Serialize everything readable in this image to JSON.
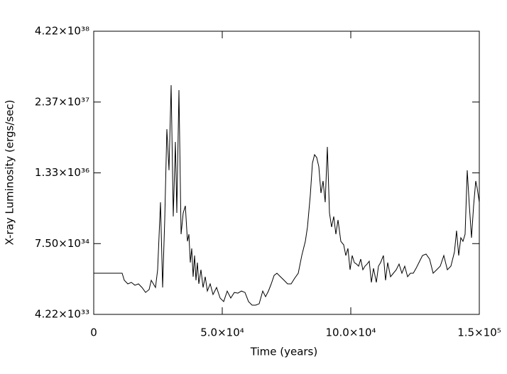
{
  "chart_data": {
    "type": "line",
    "xlabel": "Time (years)",
    "ylabel": "X-ray Luminosity (ergs/sec)",
    "color": "#000000",
    "ylog": true,
    "xlim": [
      0,
      150000
    ],
    "ylim": [
      4.22e+33,
      4.22e+38
    ],
    "xticks": [
      0,
      {
        "value": 50000,
        "label": "5.0×10⁴"
      },
      {
        "value": 100000,
        "label": "10.0×10⁴"
      },
      {
        "value": 150000,
        "label": "1.5×10⁵"
      }
    ],
    "yticks": [
      {
        "value": 4.22e+33,
        "label": "4.22×10³³"
      },
      {
        "value": 7.5e+34,
        "label": "7.50×10³⁴"
      },
      {
        "value": 1.33e+36,
        "label": "1.33×10³⁶"
      },
      {
        "value": 2.37e+37,
        "label": "2.37×10³⁷"
      },
      {
        "value": 4.22e+38,
        "label": "4.22×10³⁸"
      }
    ],
    "x": [
      0,
      11050,
      11880,
      13260,
      14640,
      16020,
      17400,
      18780,
      20170,
      21550,
      22380,
      23200,
      24030,
      24860,
      25970,
      26800,
      27620,
      28450,
      29280,
      30110,
      30940,
      31770,
      32320,
      33150,
      33980,
      34810,
      35640,
      36460,
      37020,
      37570,
      38120,
      38670,
      39230,
      39780,
      40330,
      40880,
      41710,
      42540,
      43370,
      44200,
      45300,
      46410,
      47790,
      49170,
      50550,
      51930,
      53310,
      54700,
      56080,
      57460,
      58840,
      60220,
      61600,
      62980,
      64360,
      65750,
      66850,
      67960,
      69060,
      70170,
      71270,
      72650,
      74030,
      75410,
      76800,
      78180,
      79560,
      80940,
      82320,
      83150,
      84250,
      85080,
      85910,
      86740,
      87570,
      88400,
      89220,
      90050,
      90880,
      91710,
      92540,
      93370,
      94200,
      95030,
      96130,
      97240,
      98070,
      98890,
      99720,
      100550,
      101380,
      102210,
      103040,
      103870,
      104700,
      105530,
      106350,
      107180,
      108010,
      108840,
      109940,
      110770,
      111600,
      112700,
      113530,
      114360,
      115470,
      116570,
      117680,
      118780,
      119890,
      120990,
      122100,
      123200,
      124310,
      125410,
      126520,
      127900,
      129280,
      130660,
      132040,
      133420,
      134800,
      136190,
      137570,
      138950,
      140330,
      141150,
      141980,
      142810,
      143640,
      144470,
      145300,
      146130,
      146960,
      147780,
      148610,
      149170,
      150000
    ],
    "values": [
      2.25e+34,
      2.25e+34,
      1.69e+34,
      1.46e+34,
      1.55e+34,
      1.38e+34,
      1.46e+34,
      1.26e+34,
      1.03e+34,
      1.16e+34,
      1.69e+34,
      1.46e+34,
      1.26e+34,
      2.59e+34,
      4.03e+35,
      1.26e+34,
      1.96e+35,
      7.87e+36,
      1.48e+36,
      4.71e+37,
      2.26e+35,
      4.68e+36,
      2.61e+35,
      3.85e+37,
      1.1e+35,
      2.61e+35,
      3.48e+35,
      8.24e+34,
      1.1e+35,
      3.47e+34,
      6.17e+34,
      1.95e+34,
      4.62e+34,
      1.69e+34,
      3.47e+34,
      1.46e+34,
      2.59e+34,
      1.26e+34,
      1.95e+34,
      1.09e+34,
      1.46e+34,
      9.46e+33,
      1.26e+34,
      8.19e+33,
      7.1e+33,
      1.09e+34,
      8.19e+33,
      1.03e+34,
      1e+34,
      1.09e+34,
      1.03e+34,
      7.1e+33,
      6.14e+33,
      6.14e+33,
      6.5e+33,
      1.09e+34,
      8.67e+33,
      1.09e+34,
      1.46e+34,
      2.06e+34,
      2.25e+34,
      1.95e+34,
      1.69e+34,
      1.46e+34,
      1.46e+34,
      1.84e+34,
      2.25e+34,
      4.62e+34,
      8.24e+34,
      1.47e+35,
      5.37e+35,
      1.97e+36,
      2.79e+36,
      2.48e+36,
      1.71e+36,
      5.86e+35,
      9.57e+35,
      4.03e+35,
      3.82e+36,
      2.61e+35,
      1.47e+35,
      2.26e+35,
      1.1e+35,
      1.96e+35,
      8.24e+34,
      7.13e+34,
      4.62e+34,
      6.17e+34,
      2.59e+34,
      4.62e+34,
      3.47e+34,
      3.27e+34,
      3e+34,
      4e+34,
      2.59e+34,
      3e+34,
      3.27e+34,
      3.67e+34,
      1.55e+34,
      2.75e+34,
      1.55e+34,
      3e+34,
      3.47e+34,
      4.62e+34,
      1.69e+34,
      3.47e+34,
      1.95e+34,
      2.25e+34,
      2.59e+34,
      3.27e+34,
      2.25e+34,
      3e+34,
      1.95e+34,
      2.25e+34,
      2.25e+34,
      2.75e+34,
      3.47e+34,
      4.62e+34,
      4.9e+34,
      4e+34,
      2.25e+34,
      2.59e+34,
      3e+34,
      4.62e+34,
      2.59e+34,
      3e+34,
      5.35e+34,
      1.27e+35,
      4.62e+34,
      9.51e+34,
      8.24e+34,
      1.1e+35,
      1.48e+36,
      3.48e+35,
      9.51e+34,
      3.48e+35,
      9.57e+35,
      7.18e+35,
      4.03e+35
    ]
  }
}
